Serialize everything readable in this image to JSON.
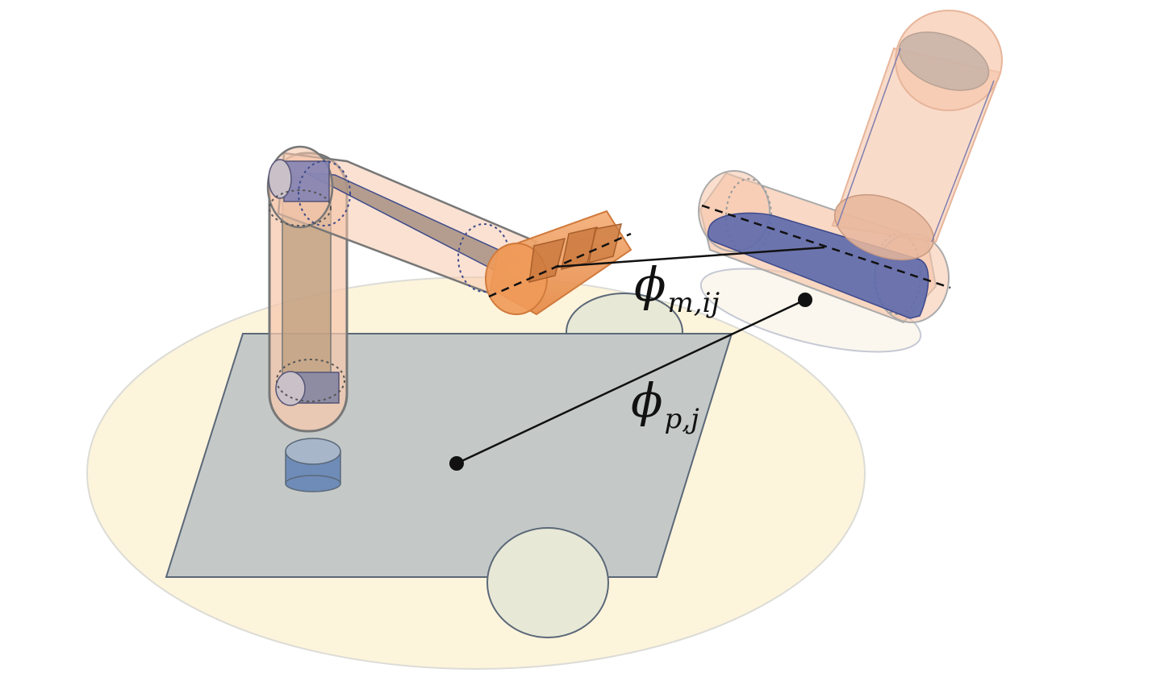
{
  "labels": {
    "phi_m": {
      "symbol": "ϕ",
      "subscript": "m,ij"
    },
    "phi_p": {
      "symbol": "ϕ",
      "subscript": "p,j"
    }
  },
  "colors": {
    "floor_ellipse": "#fdf4dc",
    "table_top": "#c4c9c8",
    "table_edge": "#5b6878",
    "wheel": "#e8e8d6",
    "link_fill": "#f6c8ad",
    "link_inner": "#8d8190",
    "joint_blue": "#7b7fb5",
    "gripper_orange": "#ef9a59",
    "object_blue": "#5f6bab",
    "puck_blue": "#6f8cb8",
    "line": "#111111"
  },
  "icons": {
    "robot": "robot-arm-icon",
    "target": "grasp-target-icon"
  }
}
